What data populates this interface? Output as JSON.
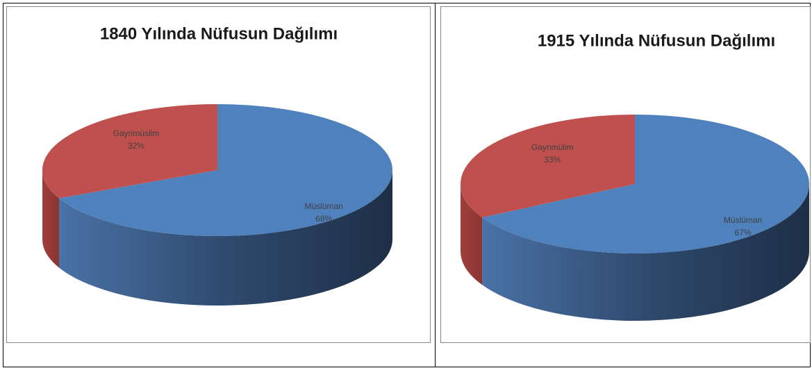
{
  "chart_data": [
    {
      "type": "pie",
      "title": "1840 Yılında Nüfusun Dağılımı",
      "categories": [
        "Gayrimüslim",
        "Müslüman"
      ],
      "values": [
        32,
        68
      ],
      "value_labels": [
        "32%",
        "68%"
      ],
      "colors": [
        "#c0504d",
        "#4f81bd"
      ]
    },
    {
      "type": "pie",
      "title": "1915 Yılında Nüfusun Dağılımı",
      "categories": [
        "Gayrimülim",
        "Müslüman"
      ],
      "values": [
        33,
        67
      ],
      "value_labels": [
        "33%",
        "67%"
      ],
      "colors": [
        "#c0504d",
        "#4f81bd"
      ]
    }
  ]
}
